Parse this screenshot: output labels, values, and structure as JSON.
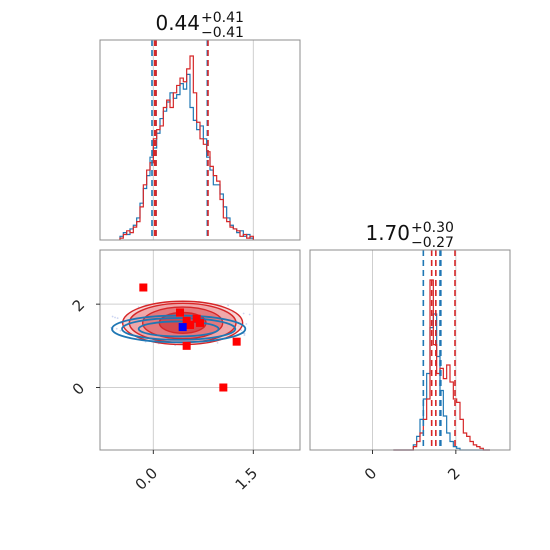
{
  "colors": {
    "blue": "#1f77b4",
    "red": "#d62728",
    "marker_red": "#ff0000",
    "marker_blue": "#0000ff"
  },
  "chart_data": {
    "type": "corner",
    "grid": true,
    "parameters": [
      {
        "range": [
          -0.8,
          2.2
        ],
        "ticks": [
          "0.0",
          "1.5"
        ],
        "tick_values": [
          0.0,
          1.5
        ],
        "title": {
          "median": "0.44",
          "plus": "+0.41",
          "minus": "−0.41"
        }
      },
      {
        "range": [
          -1.5,
          3.3
        ],
        "ticks": [
          "0",
          "2"
        ],
        "tick_values": [
          0,
          2
        ],
        "title": {
          "median": "1.70",
          "plus": "+0.30",
          "minus": "−0.27"
        }
      }
    ],
    "marginal_x": {
      "quantiles": {
        "blue": [
          -0.02,
          0.04,
          0.81
        ],
        "red": [
          0.04,
          0.02,
          0.82
        ]
      },
      "bins": [
        -0.5,
        -0.45,
        -0.4,
        -0.35,
        -0.3,
        -0.25,
        -0.2,
        -0.15,
        -0.1,
        -0.05,
        0.0,
        0.05,
        0.1,
        0.15,
        0.2,
        0.25,
        0.3,
        0.35,
        0.4,
        0.45,
        0.5,
        0.55,
        0.6,
        0.65,
        0.7,
        0.75,
        0.8,
        0.85,
        0.9,
        0.95,
        1.0,
        1.05,
        1.1,
        1.15,
        1.2,
        1.25,
        1.3,
        1.35,
        1.4,
        1.45
      ],
      "blue": [
        0.02,
        0.04,
        0.03,
        0.06,
        0.08,
        0.12,
        0.2,
        0.28,
        0.35,
        0.45,
        0.5,
        0.58,
        0.66,
        0.7,
        0.75,
        0.8,
        0.77,
        0.79,
        0.85,
        0.82,
        0.9,
        0.72,
        0.65,
        0.6,
        0.62,
        0.55,
        0.45,
        0.38,
        0.3,
        0.3,
        0.25,
        0.18,
        0.12,
        0.08,
        0.06,
        0.04,
        0.05,
        0.02,
        0.03,
        0.01
      ],
      "red": [
        0.01,
        0.03,
        0.05,
        0.04,
        0.07,
        0.1,
        0.18,
        0.3,
        0.38,
        0.42,
        0.55,
        0.6,
        0.62,
        0.72,
        0.76,
        0.72,
        0.8,
        0.84,
        0.88,
        0.86,
        0.93,
        1.0,
        0.8,
        0.64,
        0.55,
        0.52,
        0.48,
        0.4,
        0.35,
        0.32,
        0.22,
        0.12,
        0.1,
        0.07,
        0.06,
        0.05,
        0.02,
        0.03,
        0.01,
        0.02
      ]
    },
    "marginal_y": {
      "quantiles": {
        "blue": [
          1.22,
          1.62,
          1.64
        ],
        "red": [
          1.42,
          1.52,
          1.98
        ]
      },
      "bins": [
        0.5,
        0.58,
        0.66,
        0.74,
        0.82,
        0.9,
        0.98,
        1.06,
        1.14,
        1.22,
        1.3,
        1.38,
        1.46,
        1.54,
        1.62,
        1.7,
        1.78,
        1.86,
        1.94,
        2.02,
        2.1,
        2.18,
        2.26,
        2.34,
        2.42,
        2.5,
        2.58,
        2.66,
        2.74
      ],
      "blue": [
        0.0,
        0.0,
        0.0,
        0.0,
        0.0,
        0.0,
        0.03,
        0.08,
        0.18,
        0.3,
        0.45,
        0.72,
        0.8,
        0.55,
        0.35,
        0.2,
        0.1,
        0.05,
        0.02,
        0.01,
        0.0,
        0.0,
        0.0,
        0.0,
        0.0,
        0.0,
        0.0,
        0.0,
        0.0
      ],
      "red": [
        0.0,
        0.0,
        0.0,
        0.0,
        0.0,
        0.0,
        0.02,
        0.05,
        0.1,
        0.18,
        0.3,
        1.0,
        0.62,
        0.45,
        0.48,
        0.42,
        0.5,
        0.4,
        0.3,
        0.28,
        0.18,
        0.1,
        0.08,
        0.05,
        0.03,
        0.02,
        0.01,
        0.0,
        0.0
      ]
    },
    "joint": {
      "center": [
        0.44,
        1.55
      ],
      "red_contours": [
        [
          0.35,
          0.25
        ],
        [
          0.6,
          0.38
        ],
        [
          0.8,
          0.47
        ],
        [
          0.9,
          0.52
        ]
      ],
      "blue_contours": [
        [
          0.6,
          0.18
        ],
        [
          0.85,
          0.26
        ],
        [
          1.0,
          0.32
        ]
      ],
      "red_markers": [
        [
          -0.15,
          2.4
        ],
        [
          0.4,
          1.8
        ],
        [
          0.5,
          1.6
        ],
        [
          0.65,
          1.65
        ],
        [
          0.55,
          1.5
        ],
        [
          0.5,
          1.0
        ],
        [
          0.7,
          1.55
        ],
        [
          1.25,
          1.1
        ],
        [
          1.05,
          -0.0
        ]
      ],
      "blue_markers": [
        [
          0.44,
          1.45
        ]
      ]
    }
  }
}
